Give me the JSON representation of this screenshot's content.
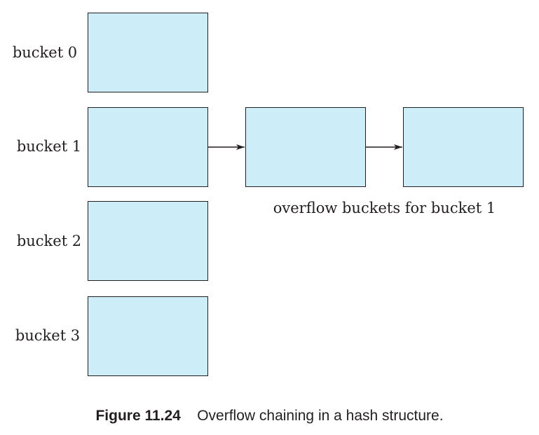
{
  "buckets": [
    {
      "label": "bucket 0"
    },
    {
      "label": "bucket 1"
    },
    {
      "label": "bucket 2"
    },
    {
      "label": "bucket 3"
    }
  ],
  "overflow": {
    "label": "overflow buckets for bucket 1",
    "chain_of": "bucket 1",
    "count": 2
  },
  "caption": {
    "number": "Figure 11.24",
    "text": "Overflow chaining in a hash structure."
  },
  "colors": {
    "box_fill": "#cdeef9",
    "stroke": "#231f20"
  }
}
